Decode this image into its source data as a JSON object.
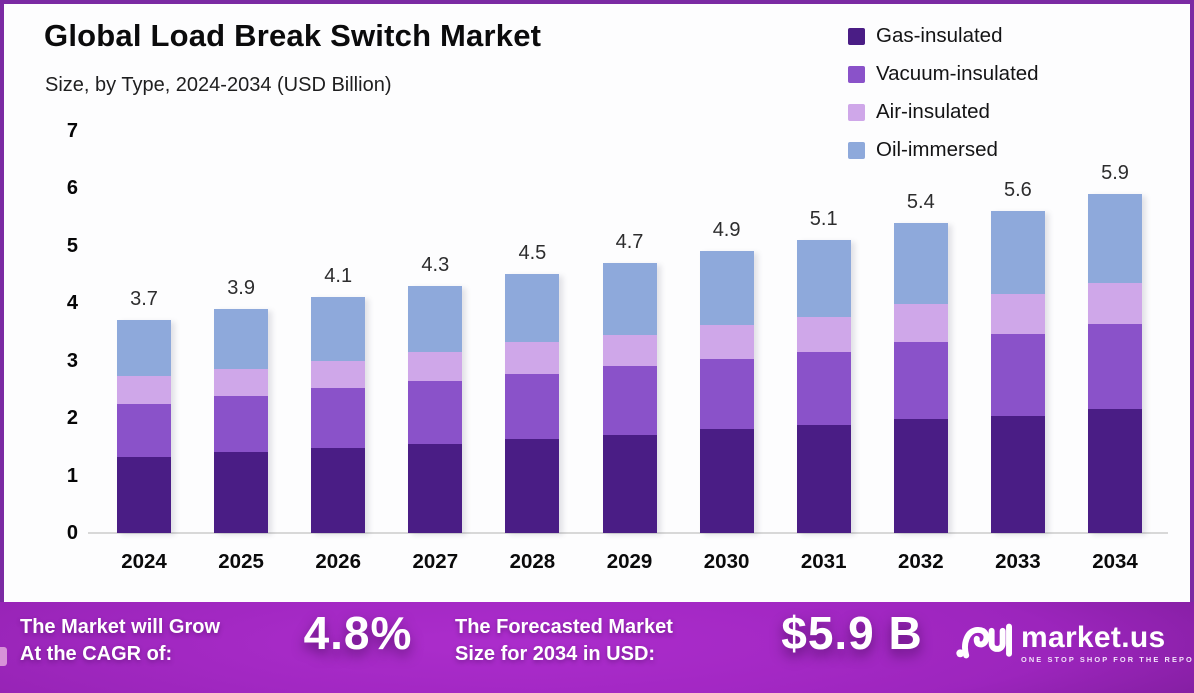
{
  "header": {
    "title": "Global Load Break Switch Market",
    "subtitle": "Size, by Type, 2024-2034 (USD Billion)"
  },
  "legend": {
    "items": [
      {
        "label": "Gas-insulated",
        "color": "#4a1d85"
      },
      {
        "label": "Vacuum-insulated",
        "color": "#8a52c9"
      },
      {
        "label": "Air-insulated",
        "color": "#cfa7e9"
      },
      {
        "label": "Oil-immersed",
        "color": "#8ea9db"
      }
    ]
  },
  "chart_data": {
    "type": "bar",
    "stacked": true,
    "title": "Global Load Break Switch Market",
    "subtitle": "Size, by Type, 2024-2034 (USD Billion)",
    "categories": [
      "2024",
      "2025",
      "2026",
      "2027",
      "2028",
      "2029",
      "2030",
      "2031",
      "2032",
      "2033",
      "2034"
    ],
    "series": [
      {
        "name": "Gas-insulated",
        "color": "#4a1d85",
        "values": [
          1.32,
          1.4,
          1.48,
          1.55,
          1.64,
          1.7,
          1.8,
          1.87,
          1.98,
          2.03,
          2.16
        ]
      },
      {
        "name": "Vacuum-insulated",
        "color": "#8a52c9",
        "values": [
          0.92,
          0.98,
          1.04,
          1.09,
          1.13,
          1.2,
          1.22,
          1.28,
          1.34,
          1.43,
          1.48
        ]
      },
      {
        "name": "Air-insulated",
        "color": "#cfa7e9",
        "values": [
          0.49,
          0.47,
          0.47,
          0.5,
          0.55,
          0.55,
          0.6,
          0.61,
          0.66,
          0.69,
          0.71
        ]
      },
      {
        "name": "Oil-immersed",
        "color": "#8ea9db",
        "values": [
          0.97,
          1.05,
          1.11,
          1.16,
          1.18,
          1.25,
          1.28,
          1.34,
          1.42,
          1.45,
          1.55
        ]
      }
    ],
    "totals": [
      3.7,
      3.9,
      4.1,
      4.3,
      4.5,
      4.7,
      4.9,
      5.1,
      5.4,
      5.6,
      5.9
    ],
    "xlabel": "",
    "ylabel": "",
    "ylim": [
      0,
      7
    ],
    "yticks": [
      0,
      1,
      2,
      3,
      4,
      5,
      6,
      7
    ],
    "grid": false,
    "legend_position": "top-right"
  },
  "banner": {
    "cagr_line1": "The Market will Grow",
    "cagr_line2": "At the CAGR of:",
    "cagr_value": "4.8%",
    "forecast_line1": "The Forecasted Market",
    "forecast_line2": "Size for 2034 in USD:",
    "forecast_value": "$5.9 B",
    "brand_name": "market.us",
    "brand_tagline": "ONE STOP SHOP FOR THE REPORTS"
  },
  "colors": {
    "frame_border": "#7b2aa3",
    "axis_line": "#d8d8d8",
    "banner_center": "#a426c6",
    "banner_edge": "#4a1157",
    "text_primary": "#0b0b0c",
    "banner_text": "#ffffff"
  }
}
